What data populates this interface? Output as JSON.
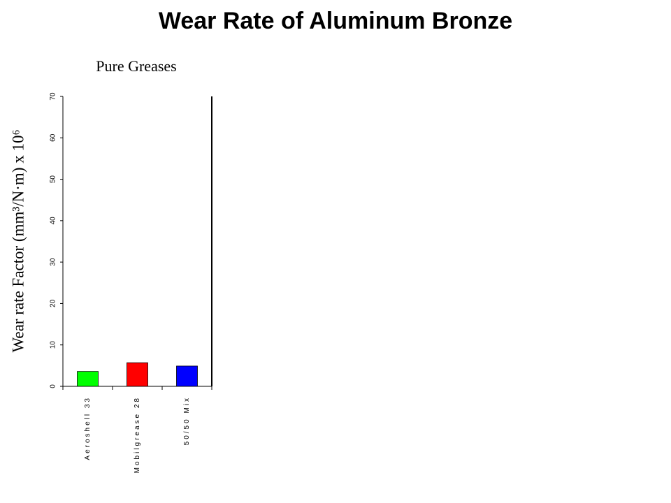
{
  "chart_data": {
    "type": "bar",
    "title": "Wear Rate of Aluminum Bronze",
    "subtitle": "Pure Greases",
    "y_label": "Wear rate Factor (mm³/N·m) x 10⁶",
    "categories": [
      "Aeroshell 33",
      "Mobilgrease 28",
      "50/50 Mix"
    ],
    "values": [
      3.6,
      5.7,
      4.9
    ],
    "colors": [
      "#00ff00",
      "#ff0000",
      "#0000ff"
    ],
    "ylim": [
      0,
      70
    ],
    "yticks": [
      0,
      10,
      20,
      30,
      40,
      50,
      60,
      70
    ]
  }
}
